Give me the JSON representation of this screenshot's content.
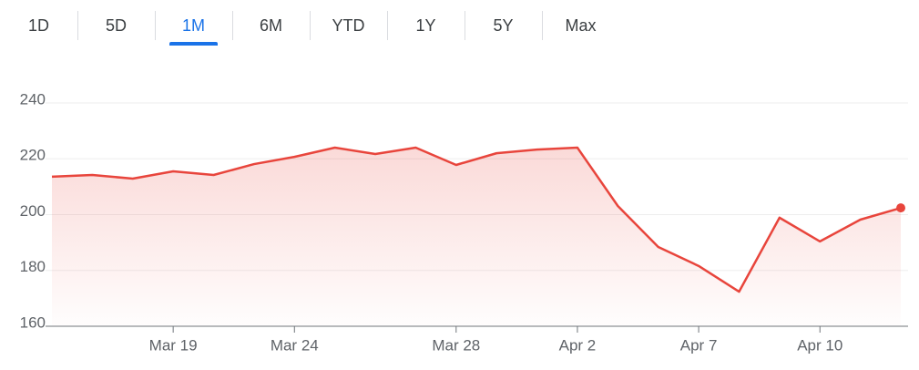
{
  "tabs": [
    "1D",
    "5D",
    "1M",
    "6M",
    "YTD",
    "1Y",
    "5Y",
    "Max"
  ],
  "active_tab": 2,
  "chart_data": {
    "type": "line",
    "categories": [
      null,
      null,
      null,
      "Mar 19",
      null,
      null,
      "Mar 24",
      null,
      null,
      null,
      "Mar 28",
      null,
      null,
      "Apr 2",
      null,
      null,
      "Apr 7",
      null,
      null,
      "Apr 10",
      null,
      null
    ],
    "values": [
      213.6,
      214.2,
      212.9,
      215.5,
      214.2,
      218.1,
      220.7,
      224.0,
      221.7,
      224.0,
      217.8,
      222.0,
      223.3,
      224.0,
      203.1,
      188.4,
      181.6,
      172.4,
      198.9,
      190.4,
      198.2,
      202.4
    ],
    "color": "#e8453c",
    "ylim": [
      160,
      240
    ],
    "yticks": [
      160,
      180,
      200,
      220,
      240
    ],
    "grid": true
  }
}
